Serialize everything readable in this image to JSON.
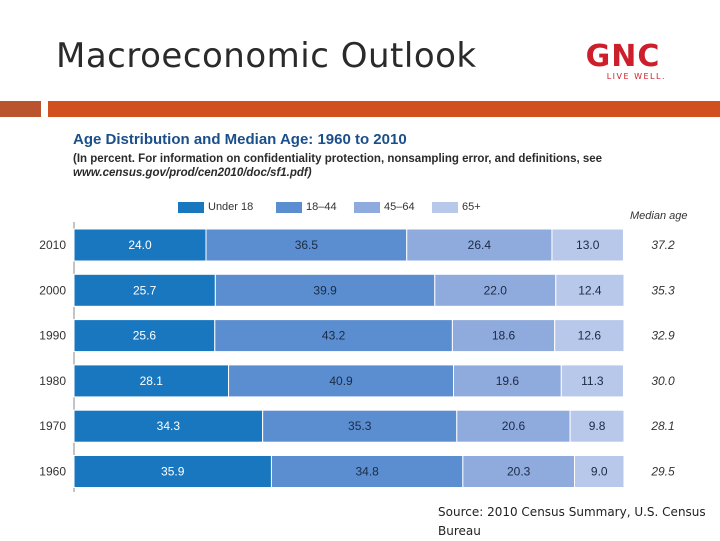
{
  "slide": {
    "title": "Macroeconomic Outlook",
    "logo_text": "GNC",
    "logo_tagline": "LIVE WELL.",
    "source": "Source: 2010 Census Summary, U.S. Census Bureau"
  },
  "colors": {
    "under18": "#1877bf",
    "age18_44": "#5b8ed0",
    "age45_64": "#8faadc",
    "age65plus": "#b8c8ea",
    "band": "#d0501f",
    "title_blue": "#1a4f8a"
  },
  "chart_data": {
    "type": "bar",
    "orientation": "horizontal",
    "stacked": true,
    "title": "Age Distribution and Median Age: 1960 to 2010",
    "subtitle_line1": "(In percent. For information on confidentiality protection, nonsampling error, and definitions, see",
    "subtitle_line2": "www.census.gov/prod/cen2010/doc/sf1.pdf)",
    "median_label": "Median age",
    "categories": [
      "2010",
      "2000",
      "1990",
      "1980",
      "1970",
      "1960"
    ],
    "series": [
      {
        "name": "Under 18",
        "values": [
          24.0,
          25.7,
          25.6,
          28.1,
          34.3,
          35.9
        ],
        "labels": [
          "24.0",
          "25.7",
          "25.6",
          "28.1",
          "34.3",
          "35.9"
        ]
      },
      {
        "name": "18–44",
        "values": [
          36.5,
          39.9,
          43.2,
          40.9,
          35.3,
          34.8
        ],
        "labels": [
          "36.5",
          "39.9",
          "43.2",
          "40.9",
          "35.3",
          "34.8"
        ]
      },
      {
        "name": "45–64",
        "values": [
          26.4,
          22.0,
          18.6,
          19.6,
          20.6,
          20.3
        ],
        "labels": [
          "26.4",
          "22.0",
          "18.6",
          "19.6",
          "20.6",
          "20.3"
        ]
      },
      {
        "name": "65+",
        "values": [
          13.0,
          12.4,
          12.6,
          11.3,
          9.8,
          9.0
        ],
        "labels": [
          "13.0",
          "12.4",
          "12.6",
          "11.3",
          "9.8",
          "9.0"
        ]
      }
    ],
    "median_age": [
      37.2,
      35.3,
      32.9,
      30.0,
      28.1,
      29.5
    ],
    "median_age_labels": [
      "37.2",
      "35.3",
      "32.9",
      "30.0",
      "28.1",
      "29.5"
    ],
    "xlim": [
      0,
      100
    ],
    "legend": "top",
    "grid": false
  }
}
